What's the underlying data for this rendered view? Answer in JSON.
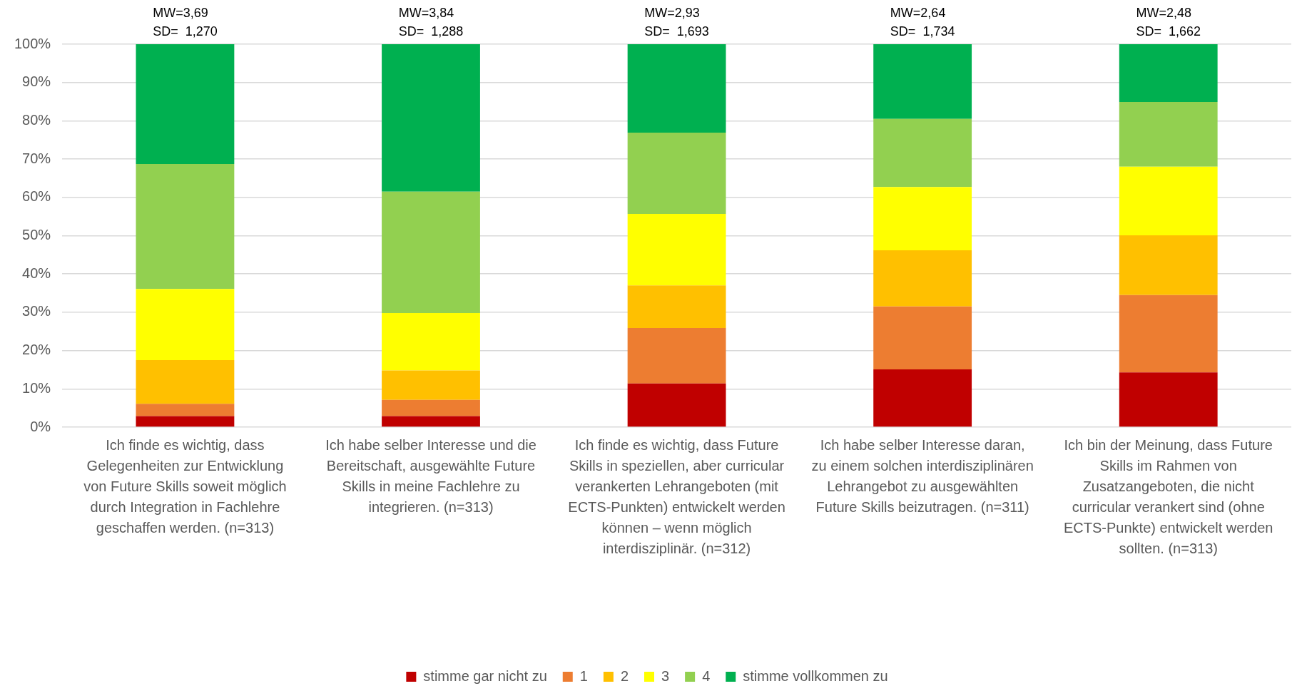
{
  "chart_data": {
    "type": "bar",
    "stacked": true,
    "categories": [
      "Ich finde es wichtig, dass Gelegenheiten zur Entwicklung von Future Skills soweit möglich durch Integration in Fachlehre geschaffen werden. (n=313)",
      "Ich habe selber Interesse und die Bereitschaft, ausgewählte Future Skills in meine Fachlehre zu integrieren. (n=313)",
      "Ich finde es wichtig, dass Future Skills in speziellen, aber curricular verankerten Lehrangeboten (mit ECTS-Punkten) entwickelt werden können – wenn möglich interdisziplinär. (n=312)",
      "Ich habe selber Interesse daran, zu einem solchen interdisziplinären Lehrangebot zu ausgewählten Future Skills beizutragen. (n=311)",
      "Ich bin der Meinung, dass Future Skills im Rahmen von Zusatzangeboten, die nicht curricular verankert sind (ohne ECTS-Punkte) entwickelt werden sollten. (n=313)"
    ],
    "series": [
      {
        "name": "stimme gar nicht zu",
        "color": "#c00000",
        "values": [
          2.9,
          2.9,
          11.4,
          15.1,
          14.3
        ]
      },
      {
        "name": "1",
        "color": "#ed7d31",
        "values": [
          3.2,
          4.2,
          14.5,
          16.4,
          20.2
        ]
      },
      {
        "name": "2",
        "color": "#ffc000",
        "values": [
          11.4,
          7.7,
          11.1,
          14.7,
          15.6
        ]
      },
      {
        "name": "3",
        "color": "#ffff00",
        "values": [
          18.6,
          15.0,
          18.7,
          16.5,
          17.9
        ]
      },
      {
        "name": "4",
        "color": "#92d050",
        "values": [
          32.6,
          31.7,
          21.2,
          17.8,
          16.9
        ]
      },
      {
        "name": "stimme vollkommen zu",
        "color": "#00b050",
        "values": [
          31.3,
          38.5,
          23.1,
          19.5,
          15.1
        ]
      }
    ],
    "ylim": [
      0,
      100
    ],
    "yticks": [
      {
        "value": 0,
        "label": "0%"
      },
      {
        "value": 10,
        "label": "10%"
      },
      {
        "value": 20,
        "label": "20%"
      },
      {
        "value": 30,
        "label": "30%"
      },
      {
        "value": 40,
        "label": "40%"
      },
      {
        "value": 50,
        "label": "50%"
      },
      {
        "value": 60,
        "label": "60%"
      },
      {
        "value": 70,
        "label": "70%"
      },
      {
        "value": 80,
        "label": "80%"
      },
      {
        "value": 90,
        "label": "90%"
      },
      {
        "value": 100,
        "label": "100%"
      }
    ],
    "grid": "y",
    "legend": "bottom",
    "annotations": [
      {
        "text": "MW=3,69\nSD=  1,270",
        "x": "Ich finde es wichtig, dass Gelegenheiten zur Entwicklung von Future Skills soweit möglich durch Integration in Fachlehre geschaffen werden. (n=313)",
        "y": 100
      },
      {
        "text": "MW=3,84\nSD=  1,288",
        "x": "Ich habe selber Interesse und die Bereitschaft, ausgewählte Future Skills in meine Fachlehre zu integrieren. (n=313)",
        "y": 100
      },
      {
        "text": "MW=2,93\nSD=  1,693",
        "x": "Ich finde es wichtig, dass Future Skills in speziellen, aber curricular verankerten Lehrangeboten (mit ECTS-Punkten) entwickelt werden können – wenn möglich interdisziplinär. (n=312)",
        "y": 100
      },
      {
        "text": "MW=2,64\nSD=  1,734",
        "x": "Ich habe selber Interesse daran, zu einem solchen interdisziplinären Lehrangebot zu ausgewählten Future Skills beizutragen. (n=311)",
        "y": 100
      },
      {
        "text": "MW=2,48\nSD=  1,662",
        "x": "Ich bin der Meinung, dass Future Skills im Rahmen von Zusatzangeboten, die nicht curricular verankert sind (ohne ECTS-Punkte) entwickelt werden sollten. (n=313)",
        "y": 100
      }
    ]
  }
}
